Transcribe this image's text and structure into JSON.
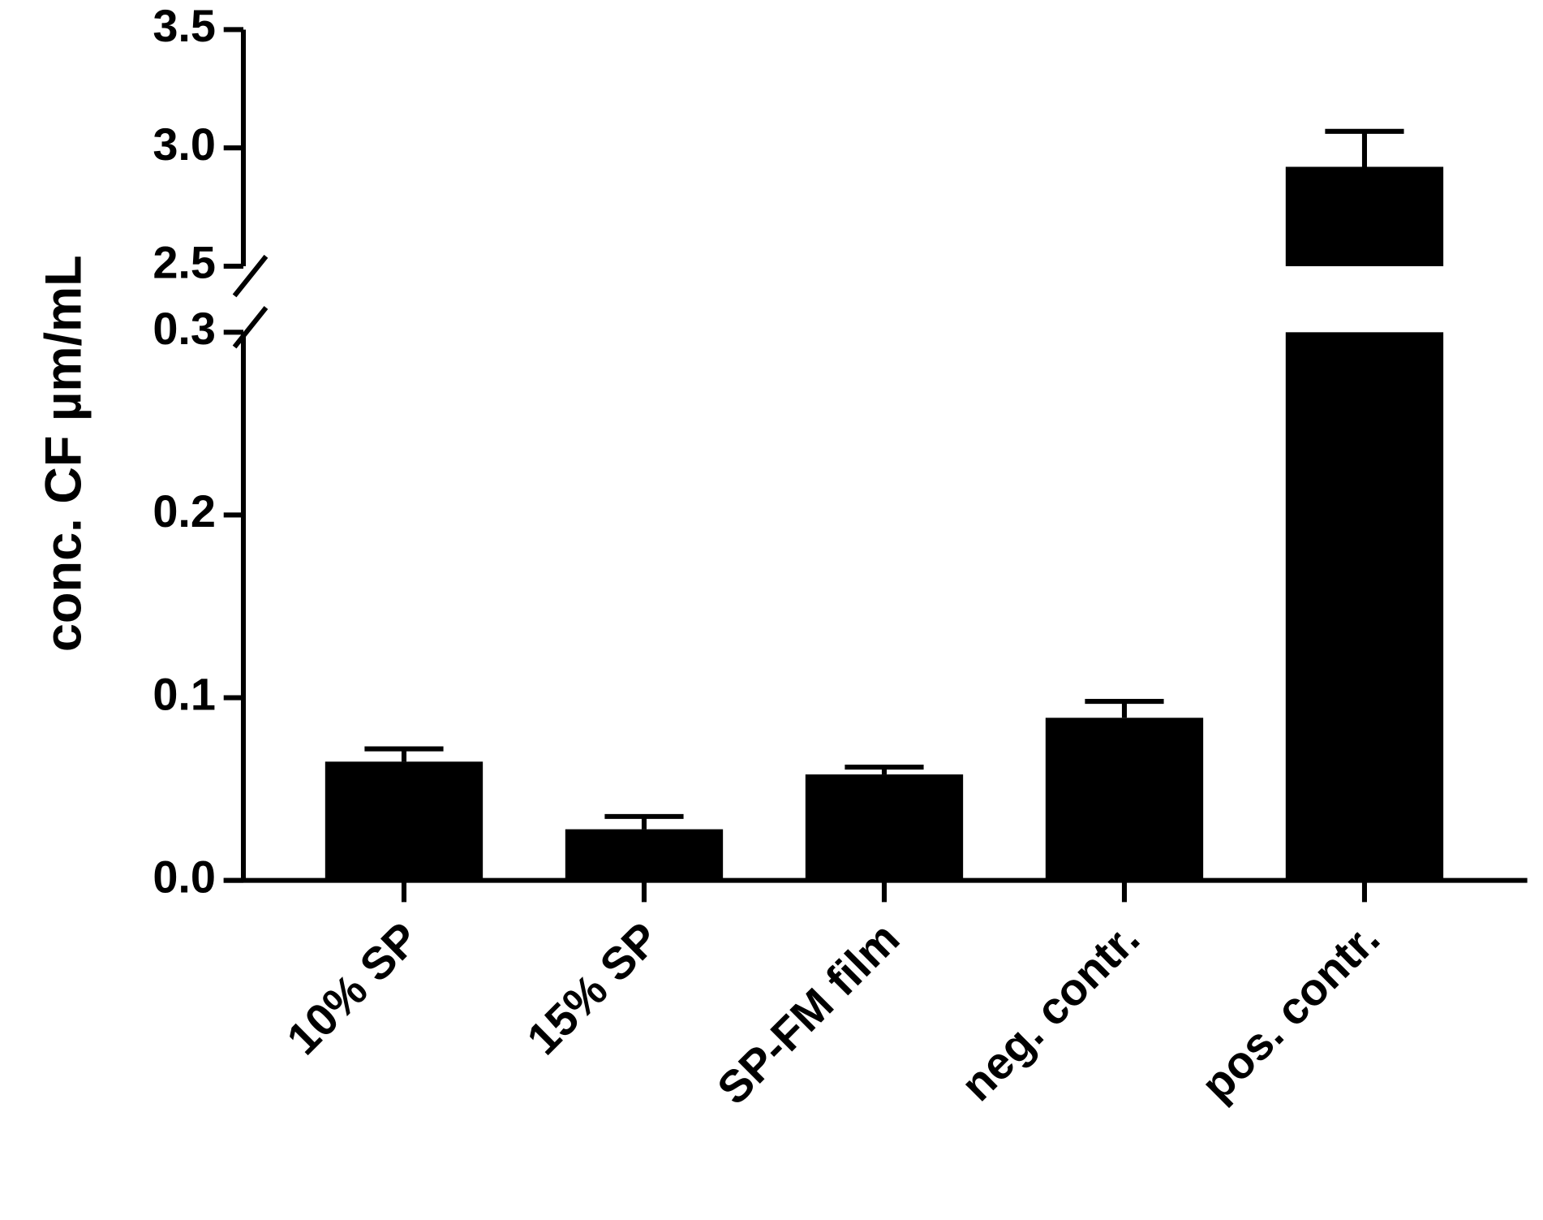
{
  "chart_data": {
    "type": "bar",
    "y_label": "conc. CF µm/mL",
    "categories": [
      "10% SP",
      "15% SP",
      "SP-FM film",
      "neg. contr.",
      "pos. contr."
    ],
    "values": [
      0.065,
      0.028,
      0.058,
      0.089,
      2.92
    ],
    "errors": [
      0.007,
      0.007,
      0.004,
      0.009,
      0.15
    ],
    "color": "#000000",
    "ylim": [
      0,
      3.5
    ],
    "y_break": [
      0.3,
      2.5
    ],
    "yticks": [
      {
        "value": 0,
        "label": "0.0"
      },
      0.1,
      0.2,
      0.3,
      2.5,
      {
        "value": 3,
        "label": "3.0"
      },
      3.5
    ]
  }
}
